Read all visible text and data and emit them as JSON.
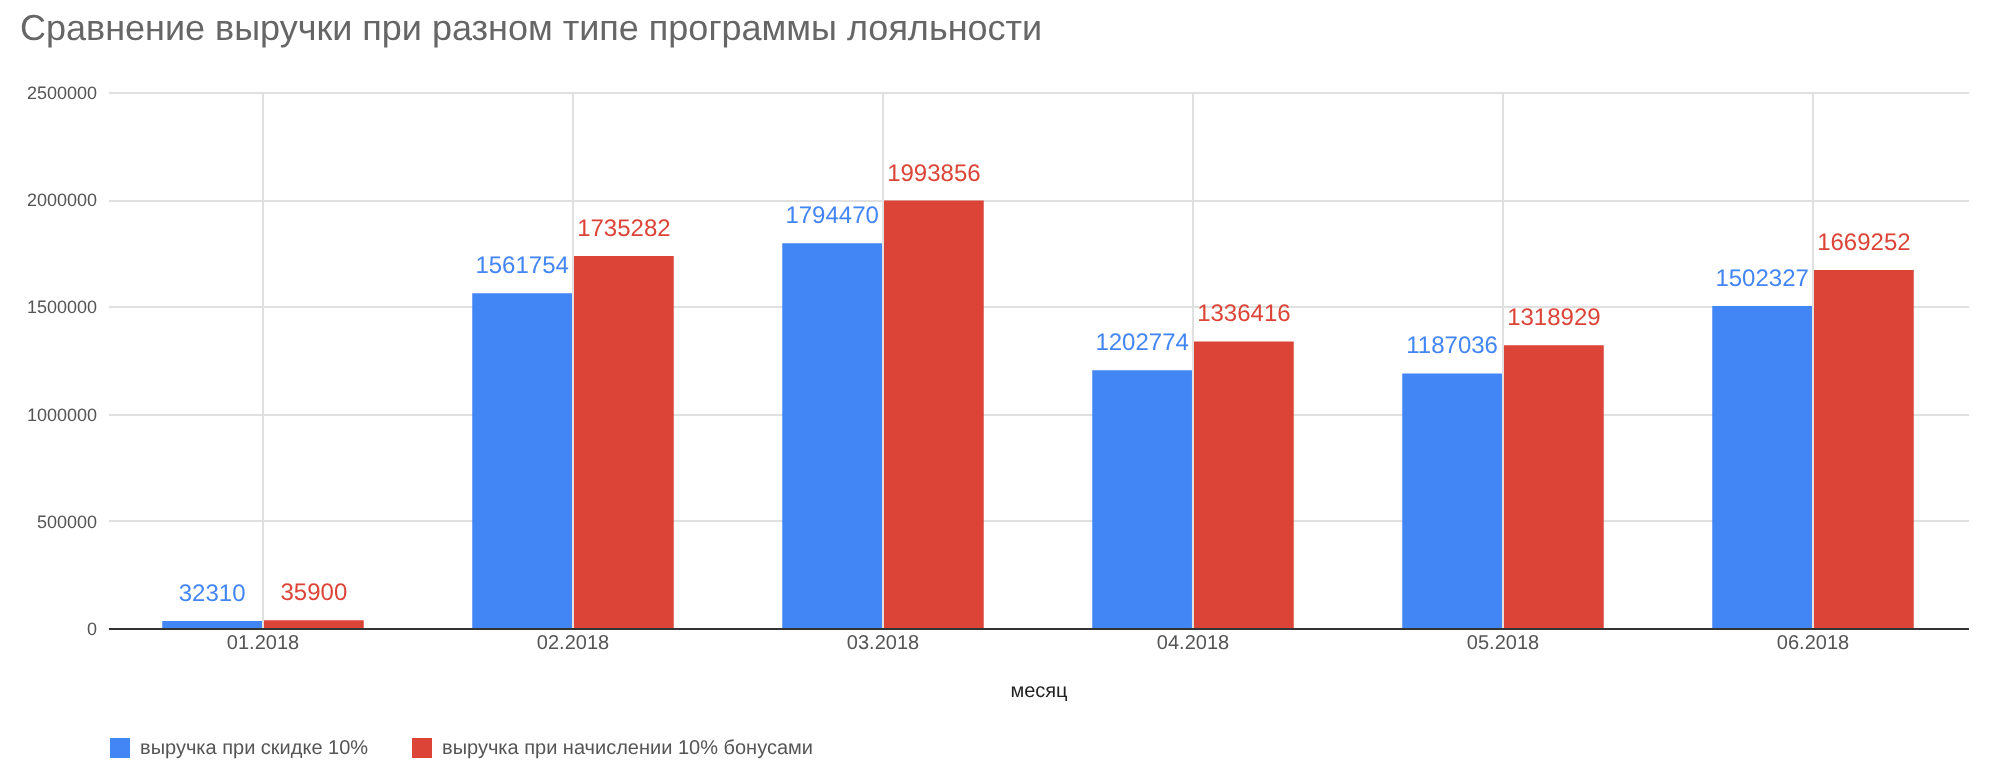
{
  "chart_data": {
    "type": "bar",
    "title": "Сравнение выручки при разном типе программы лояльности",
    "xlabel": "месяц",
    "categories": [
      "01.2018",
      "02.2018",
      "03.2018",
      "04.2018",
      "05.2018",
      "06.2018"
    ],
    "series": [
      {
        "name": "выручка при скидке 10%",
        "color": "#4285f4",
        "values": [
          32310,
          1561754,
          1794470,
          1202774,
          1187036,
          1502327
        ]
      },
      {
        "name": "выручка при начислении 10% бонусами",
        "color": "#db4437",
        "values": [
          35900,
          1735282,
          1993856,
          1336416,
          1318929,
          1669252
        ]
      }
    ],
    "ylim": [
      0,
      2500000
    ],
    "yticks": [
      0,
      500000,
      1000000,
      1500000,
      2000000,
      2500000
    ],
    "grid": true,
    "legend": "bottom",
    "data_labels": true
  }
}
